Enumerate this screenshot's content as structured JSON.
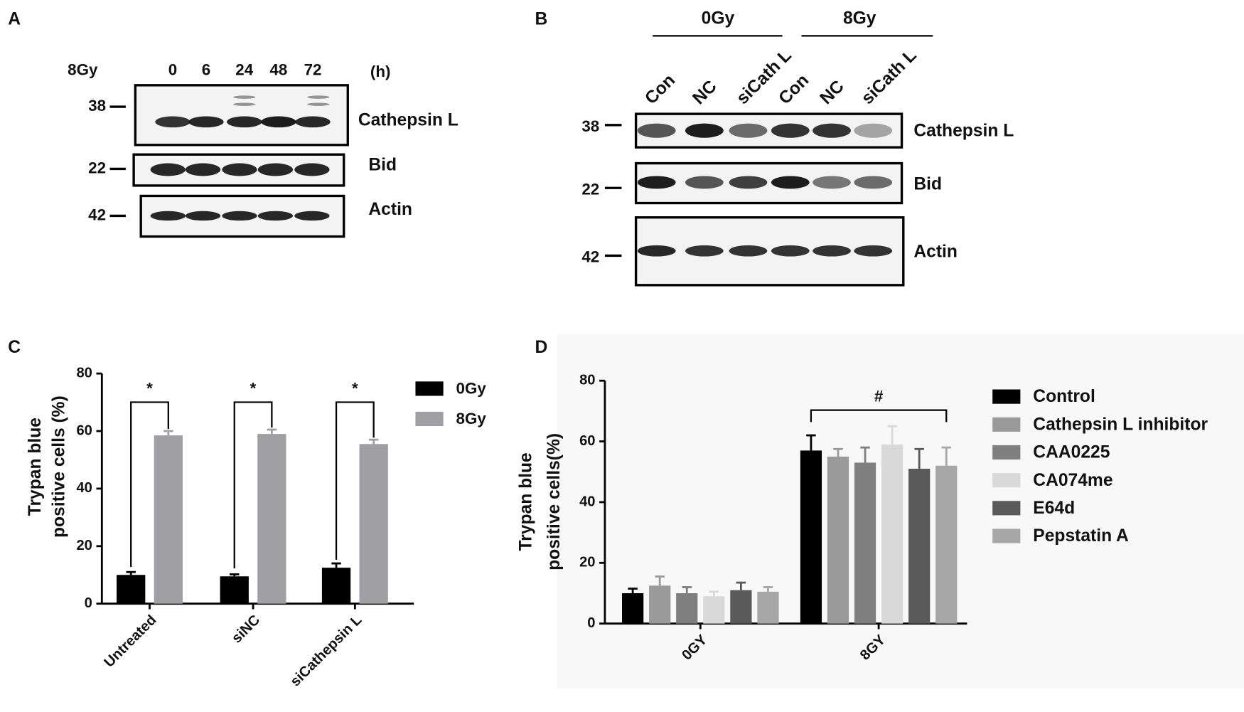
{
  "panels": {
    "a": {
      "letter": "A",
      "dose": "8Gy",
      "lanes": [
        "0",
        "6",
        "24",
        "48",
        "72"
      ],
      "unit": "(h)",
      "markers": [
        "38",
        "22",
        "42"
      ],
      "proteins": [
        "Cathepsin L",
        "Bid",
        "Actin"
      ]
    },
    "b": {
      "letter": "B",
      "groups": [
        "0Gy",
        "8Gy"
      ],
      "lanes": [
        "Con",
        "NC",
        "siCath L",
        "Con",
        "NC",
        "siCath L"
      ],
      "markers": [
        "38",
        "22",
        "42"
      ],
      "proteins": [
        "Cathepsin L",
        "Bid",
        "Actin"
      ]
    },
    "c": {
      "letter": "C"
    },
    "d": {
      "letter": "D"
    }
  },
  "chart_data": [
    {
      "type": "bar",
      "ylabel": [
        "Trypan blue",
        "positive cells (%)"
      ],
      "categories": [
        "Untreated",
        "siNC",
        "siCathepsin L"
      ],
      "series": [
        {
          "name": "0Gy",
          "color": "#000000",
          "values": [
            10,
            9.5,
            12.5
          ],
          "errors": [
            1,
            0.7,
            1.5
          ]
        },
        {
          "name": "8Gy",
          "color": "#a0a0a4",
          "values": [
            58.5,
            59,
            55.5
          ],
          "errors": [
            1.5,
            1.5,
            1.5
          ]
        }
      ],
      "annotations": [
        "*",
        "*",
        "*"
      ],
      "ylim": [
        0,
        80
      ],
      "yticks": [
        0,
        20,
        40,
        60,
        80
      ],
      "legend": "right"
    },
    {
      "type": "bar",
      "ylabel": [
        "Trypan blue",
        "positive cells(%)"
      ],
      "categories": [
        "0GY",
        "8GY"
      ],
      "series": [
        {
          "name": "Control",
          "color": "#000000",
          "values": [
            10,
            57
          ],
          "errors": [
            1.5,
            5
          ]
        },
        {
          "name": "Cathepsin L inhibitor",
          "color": "#9a9a9a",
          "values": [
            12.5,
            55
          ],
          "errors": [
            3,
            2.5
          ]
        },
        {
          "name": "CAA0225",
          "color": "#7f7f7f",
          "values": [
            10,
            53
          ],
          "errors": [
            2,
            5
          ]
        },
        {
          "name": "CA074me",
          "color": "#d9d9d9",
          "values": [
            9,
            59
          ],
          "errors": [
            1.5,
            6
          ]
        },
        {
          "name": "E64d",
          "color": "#595959",
          "values": [
            11,
            51
          ],
          "errors": [
            2.5,
            6.5
          ]
        },
        {
          "name": "Pepstatin A",
          "color": "#a6a6a6",
          "values": [
            10.5,
            52
          ],
          "errors": [
            1.5,
            6
          ]
        }
      ],
      "annotations": [
        null,
        "#"
      ],
      "ylim": [
        0,
        80
      ],
      "yticks": [
        0,
        20,
        40,
        60,
        80
      ],
      "legend": "right"
    }
  ]
}
